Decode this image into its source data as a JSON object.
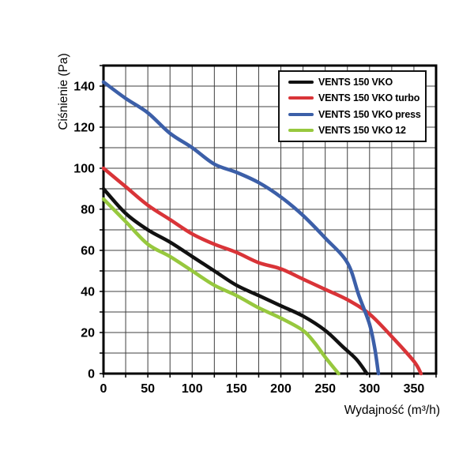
{
  "figure": {
    "background": "#ffffff",
    "border_color": "#000000",
    "grid_color": "#3f3f3f",
    "text_color": "#000000"
  },
  "chart_data": {
    "type": "line",
    "title": "",
    "xlabel": "Wydajność (m³/h)",
    "ylabel": "Ciśnienie (Pa)",
    "xlim": [
      0,
      375
    ],
    "ylim": [
      0,
      150
    ],
    "x_ticks": [
      0,
      50,
      100,
      150,
      200,
      250,
      300,
      350
    ],
    "y_ticks": [
      0,
      20,
      40,
      60,
      80,
      100,
      120,
      140
    ],
    "x_minor_step": 25,
    "y_minor_step": 10,
    "grid": true,
    "legend_position": "top-right",
    "series": [
      {
        "name": "VENTS 150 VKO",
        "color": "#111111",
        "points": [
          [
            0,
            90
          ],
          [
            25,
            78
          ],
          [
            50,
            70
          ],
          [
            75,
            64
          ],
          [
            100,
            57
          ],
          [
            125,
            50
          ],
          [
            150,
            43
          ],
          [
            175,
            38
          ],
          [
            200,
            33
          ],
          [
            225,
            28
          ],
          [
            250,
            21
          ],
          [
            270,
            13
          ],
          [
            285,
            7
          ],
          [
            297,
            0
          ]
        ]
      },
      {
        "name": "VENTS 150 VKO turbo",
        "color": "#d93438",
        "points": [
          [
            0,
            100
          ],
          [
            25,
            91
          ],
          [
            50,
            82
          ],
          [
            75,
            75
          ],
          [
            100,
            68
          ],
          [
            125,
            63
          ],
          [
            150,
            59
          ],
          [
            175,
            54
          ],
          [
            200,
            51
          ],
          [
            225,
            46
          ],
          [
            250,
            41
          ],
          [
            275,
            36
          ],
          [
            300,
            29
          ],
          [
            325,
            18
          ],
          [
            350,
            6
          ],
          [
            358,
            0
          ]
        ]
      },
      {
        "name": "VENTS 150 VKO press",
        "color": "#3c5fa8",
        "points": [
          [
            0,
            142
          ],
          [
            25,
            134
          ],
          [
            50,
            127
          ],
          [
            75,
            117
          ],
          [
            100,
            110
          ],
          [
            125,
            102
          ],
          [
            150,
            98
          ],
          [
            175,
            93
          ],
          [
            200,
            86
          ],
          [
            225,
            77
          ],
          [
            250,
            66
          ],
          [
            275,
            54
          ],
          [
            288,
            38
          ],
          [
            300,
            24
          ],
          [
            306,
            12
          ],
          [
            310,
            0
          ]
        ]
      },
      {
        "name": "VENTS 150 VKO 12",
        "color": "#97c83e",
        "points": [
          [
            0,
            85
          ],
          [
            25,
            74
          ],
          [
            50,
            63
          ],
          [
            75,
            57
          ],
          [
            100,
            50
          ],
          [
            125,
            43
          ],
          [
            150,
            38
          ],
          [
            175,
            32
          ],
          [
            200,
            27
          ],
          [
            225,
            21
          ],
          [
            238,
            15
          ],
          [
            250,
            8
          ],
          [
            265,
            0
          ]
        ]
      }
    ]
  }
}
